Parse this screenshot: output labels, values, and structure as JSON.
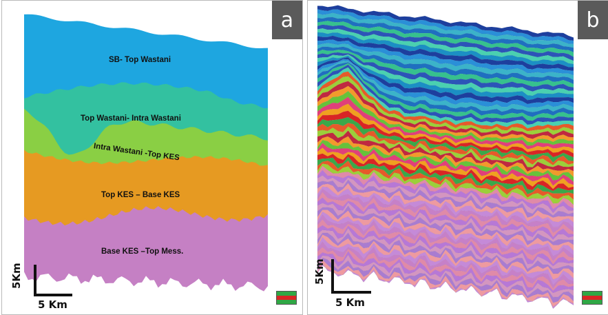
{
  "panel_a": {
    "tag": "a",
    "labels": {
      "sb_top_wastani": "SB- Top Wastani",
      "top_wastani_intra": "Top Wastani- Intra Wastani",
      "intra_wastani_top_kes": "Intra Wastani -Top KES",
      "top_kes_base_kes": "Top KES – Base KES",
      "base_kes_top_mess": "Base KES –Top Mess."
    },
    "colors": {
      "sb_top_wastani": "#1ea6e0",
      "top_wastani_intra": "#33c1a0",
      "intra_wastani_top_kes": "#8acf44",
      "top_kes_base_kes": "#e69a22",
      "base_kes_top_mess": "#c580c4"
    },
    "scale": {
      "vertical": "5Km",
      "horizontal": "5 Km"
    }
  },
  "panel_b": {
    "tag": "b",
    "scale": {
      "vertical": "5Km",
      "horizontal": "5 Km"
    }
  },
  "legend_icon": {
    "colors": [
      "#2fa845",
      "#d92525",
      "#2fa845"
    ]
  }
}
